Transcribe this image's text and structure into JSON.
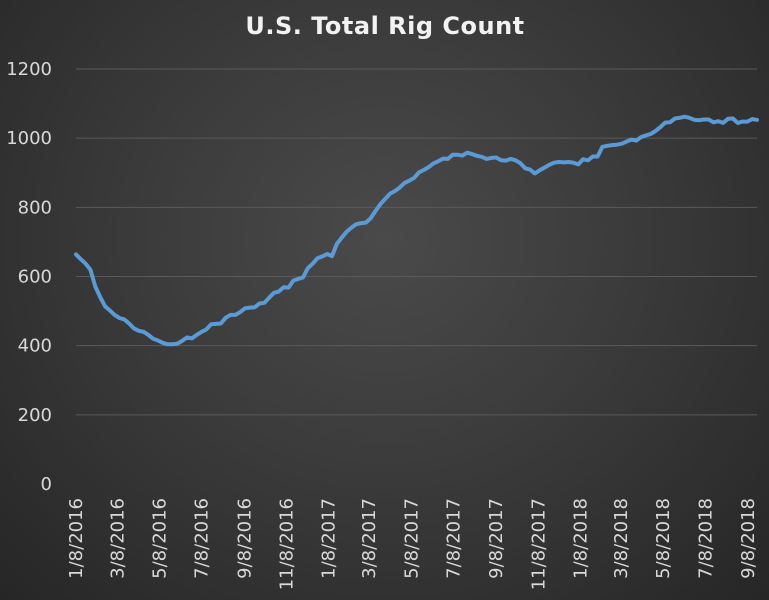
{
  "chart_data": {
    "type": "line",
    "title": "U.S. Total Rig Count",
    "xlabel": "",
    "ylabel": "",
    "ylim": [
      0,
      1200
    ],
    "yticks": [
      0,
      200,
      400,
      600,
      800,
      1000,
      1200
    ],
    "grid": true,
    "legend": "none",
    "x_tick_labels": [
      "1/8/2016",
      "3/8/2016",
      "5/8/2016",
      "7/8/2016",
      "9/8/2016",
      "11/8/2016",
      "1/8/2017",
      "3/8/2017",
      "5/8/2017",
      "7/8/2017",
      "9/8/2017",
      "11/8/2017",
      "1/8/2018",
      "3/8/2018",
      "5/8/2018",
      "7/8/2018",
      "9/8/2018"
    ],
    "series": [
      {
        "color": "#5b9bd5",
        "points": [
          [
            "2016-01-08",
            664
          ],
          [
            "2016-01-15",
            650
          ],
          [
            "2016-01-22",
            637
          ],
          [
            "2016-01-29",
            619
          ],
          [
            "2016-02-05",
            571
          ],
          [
            "2016-02-12",
            541
          ],
          [
            "2016-02-19",
            514
          ],
          [
            "2016-02-26",
            502
          ],
          [
            "2016-03-04",
            489
          ],
          [
            "2016-03-11",
            480
          ],
          [
            "2016-03-18",
            476
          ],
          [
            "2016-03-25",
            464
          ],
          [
            "2016-04-01",
            450
          ],
          [
            "2016-04-08",
            443
          ],
          [
            "2016-04-15",
            440
          ],
          [
            "2016-04-22",
            431
          ],
          [
            "2016-04-29",
            420
          ],
          [
            "2016-05-06",
            415
          ],
          [
            "2016-05-13",
            408
          ],
          [
            "2016-05-20",
            404
          ],
          [
            "2016-05-27",
            404
          ],
          [
            "2016-06-03",
            406
          ],
          [
            "2016-06-10",
            414
          ],
          [
            "2016-06-17",
            424
          ],
          [
            "2016-06-24",
            421
          ],
          [
            "2016-07-01",
            431
          ],
          [
            "2016-07-08",
            440
          ],
          [
            "2016-07-15",
            447
          ],
          [
            "2016-07-22",
            462
          ],
          [
            "2016-07-29",
            463
          ],
          [
            "2016-08-05",
            464
          ],
          [
            "2016-08-12",
            481
          ],
          [
            "2016-08-19",
            489
          ],
          [
            "2016-08-26",
            489
          ],
          [
            "2016-09-02",
            497
          ],
          [
            "2016-09-09",
            508
          ],
          [
            "2016-09-16",
            510
          ],
          [
            "2016-09-23",
            511
          ],
          [
            "2016-09-30",
            522
          ],
          [
            "2016-10-07",
            524
          ],
          [
            "2016-10-14",
            539
          ],
          [
            "2016-10-21",
            553
          ],
          [
            "2016-10-28",
            557
          ],
          [
            "2016-11-04",
            569
          ],
          [
            "2016-11-11",
            568
          ],
          [
            "2016-11-18",
            588
          ],
          [
            "2016-11-25",
            593
          ],
          [
            "2016-12-02",
            597
          ],
          [
            "2016-12-09",
            624
          ],
          [
            "2016-12-16",
            637
          ],
          [
            "2016-12-23",
            653
          ],
          [
            "2016-12-30",
            658
          ],
          [
            "2017-01-06",
            665
          ],
          [
            "2017-01-13",
            659
          ],
          [
            "2017-01-20",
            694
          ],
          [
            "2017-01-27",
            712
          ],
          [
            "2017-02-03",
            729
          ],
          [
            "2017-02-10",
            741
          ],
          [
            "2017-02-17",
            751
          ],
          [
            "2017-02-24",
            754
          ],
          [
            "2017-03-03",
            756
          ],
          [
            "2017-03-10",
            768
          ],
          [
            "2017-03-17",
            789
          ],
          [
            "2017-03-24",
            809
          ],
          [
            "2017-03-31",
            824
          ],
          [
            "2017-04-07",
            839
          ],
          [
            "2017-04-14",
            847
          ],
          [
            "2017-04-21",
            857
          ],
          [
            "2017-04-28",
            870
          ],
          [
            "2017-05-05",
            877
          ],
          [
            "2017-05-12",
            885
          ],
          [
            "2017-05-19",
            901
          ],
          [
            "2017-05-26",
            908
          ],
          [
            "2017-06-02",
            916
          ],
          [
            "2017-06-09",
            927
          ],
          [
            "2017-06-16",
            933
          ],
          [
            "2017-06-23",
            941
          ],
          [
            "2017-06-30",
            940
          ],
          [
            "2017-07-07",
            952
          ],
          [
            "2017-07-14",
            952
          ],
          [
            "2017-07-21",
            950
          ],
          [
            "2017-07-28",
            958
          ],
          [
            "2017-08-04",
            954
          ],
          [
            "2017-08-11",
            949
          ],
          [
            "2017-08-18",
            946
          ],
          [
            "2017-08-25",
            940
          ],
          [
            "2017-09-01",
            943
          ],
          [
            "2017-09-08",
            944
          ],
          [
            "2017-09-15",
            936
          ],
          [
            "2017-09-22",
            935
          ],
          [
            "2017-09-29",
            940
          ],
          [
            "2017-10-06",
            936
          ],
          [
            "2017-10-13",
            928
          ],
          [
            "2017-10-20",
            913
          ],
          [
            "2017-10-27",
            909
          ],
          [
            "2017-11-03",
            898
          ],
          [
            "2017-11-10",
            907
          ],
          [
            "2017-11-17",
            915
          ],
          [
            "2017-11-24",
            923
          ],
          [
            "2017-12-01",
            929
          ],
          [
            "2017-12-08",
            931
          ],
          [
            "2017-12-15",
            930
          ],
          [
            "2017-12-22",
            931
          ],
          [
            "2017-12-29",
            929
          ],
          [
            "2018-01-05",
            924
          ],
          [
            "2018-01-12",
            939
          ],
          [
            "2018-01-19",
            936
          ],
          [
            "2018-01-26",
            947
          ],
          [
            "2018-02-02",
            947
          ],
          [
            "2018-02-09",
            975
          ],
          [
            "2018-02-16",
            978
          ],
          [
            "2018-02-23",
            980
          ],
          [
            "2018-03-02",
            981
          ],
          [
            "2018-03-09",
            984
          ],
          [
            "2018-03-16",
            990
          ],
          [
            "2018-03-23",
            996
          ],
          [
            "2018-03-30",
            993
          ],
          [
            "2018-04-06",
            1003
          ],
          [
            "2018-04-13",
            1008
          ],
          [
            "2018-04-20",
            1012
          ],
          [
            "2018-04-27",
            1021
          ],
          [
            "2018-05-04",
            1032
          ],
          [
            "2018-05-11",
            1045
          ],
          [
            "2018-05-18",
            1046
          ],
          [
            "2018-05-25",
            1057
          ],
          [
            "2018-06-01",
            1059
          ],
          [
            "2018-06-08",
            1062
          ],
          [
            "2018-06-15",
            1059
          ],
          [
            "2018-06-22",
            1053
          ],
          [
            "2018-06-29",
            1052
          ],
          [
            "2018-07-06",
            1054
          ],
          [
            "2018-07-13",
            1054
          ],
          [
            "2018-07-20",
            1046
          ],
          [
            "2018-07-27",
            1049
          ],
          [
            "2018-08-03",
            1044
          ],
          [
            "2018-08-10",
            1056
          ],
          [
            "2018-08-17",
            1057
          ],
          [
            "2018-08-24",
            1044
          ],
          [
            "2018-08-31",
            1048
          ],
          [
            "2018-09-07",
            1048
          ],
          [
            "2018-09-14",
            1055
          ],
          [
            "2018-09-21",
            1053
          ]
        ]
      }
    ]
  }
}
